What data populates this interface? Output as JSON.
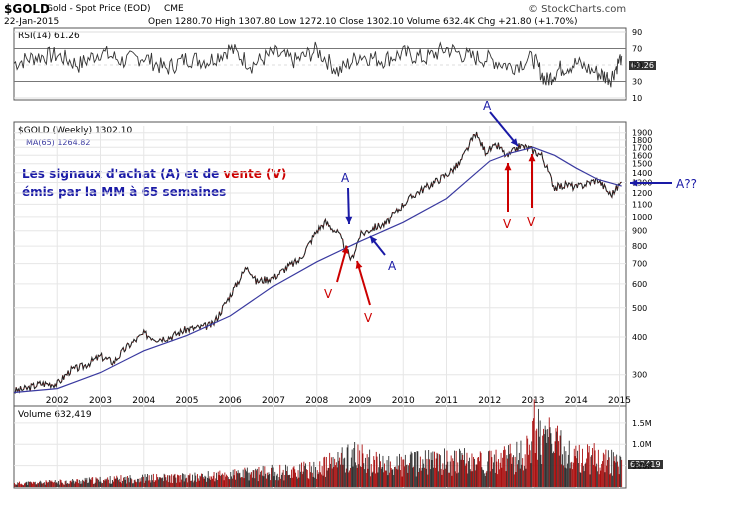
{
  "header": {
    "symbol": "$GOLD",
    "name": "Gold - Spot Price (EOD)",
    "exchange": "CME",
    "watermark": "© StockCharts.com",
    "date": "22-Jan-2015",
    "ohlc": "Open 1280.70  High 1307.80  Low 1272.10  Close 1302.10  Volume 632.4K  Chg +21.80 (+1.70%)"
  },
  "rsi_panel": {
    "label": "RSI(14) 61.26",
    "value_badge": "61.26",
    "ticks": [
      10,
      30,
      50,
      70,
      90
    ],
    "color": "#333333"
  },
  "price_panel": {
    "label": "$GOLD (Weekly) 1302.10",
    "ma_label": "MA(65) 1264.82",
    "annotation_line1": "Les signaux d'achat (A) et de",
    "annotation_word_sell": "vente (V)",
    "annotation_line2": "émis par la MM à 65 semaines",
    "sell_color": "#cc0000",
    "buy_color": "#1a1aa6",
    "price_color": "#000000",
    "ma_color": "#3a3aa0"
  },
  "volume_panel": {
    "label": "Volume 632,419",
    "badge": "632419",
    "color": "#aa1111"
  },
  "chart_data": [
    {
      "type": "line",
      "name": "RSI(14)",
      "x": [
        2001.0,
        2001.5,
        2002.0,
        2002.5,
        2003.0,
        2003.5,
        2004.0,
        2004.5,
        2005.0,
        2005.5,
        2006.0,
        2006.5,
        2007.0,
        2007.5,
        2008.0,
        2008.5,
        2009.0,
        2009.5,
        2010.0,
        2010.5,
        2011.0,
        2011.5,
        2012.0,
        2012.5,
        2013.0,
        2013.3,
        2013.6,
        2014.0,
        2014.5,
        2014.8,
        2015.05
      ],
      "values": [
        52,
        60,
        62,
        50,
        66,
        55,
        60,
        45,
        58,
        55,
        70,
        50,
        64,
        55,
        68,
        42,
        62,
        56,
        64,
        58,
        70,
        60,
        57,
        48,
        58,
        30,
        45,
        52,
        40,
        34,
        61
      ],
      "ylim": [
        10,
        90
      ],
      "tick_labels": [
        "10",
        "30",
        "50",
        "70",
        "90"
      ]
    },
    {
      "type": "line",
      "title": "$GOLD (Weekly) 1302.10",
      "series": [
        {
          "name": "$GOLD",
          "x": [
            2001.0,
            2001.3,
            2001.6,
            2002.0,
            2002.3,
            2002.6,
            2003.0,
            2003.3,
            2003.6,
            2004.0,
            2004.3,
            2004.6,
            2005.0,
            2005.3,
            2005.6,
            2006.0,
            2006.4,
            2006.6,
            2007.0,
            2007.3,
            2007.6,
            2008.0,
            2008.2,
            2008.5,
            2008.8,
            2009.0,
            2009.3,
            2009.6,
            2010.0,
            2010.3,
            2010.6,
            2011.0,
            2011.3,
            2011.67,
            2011.9,
            2012.2,
            2012.4,
            2012.7,
            2012.9,
            2013.2,
            2013.5,
            2013.8,
            2014.0,
            2014.3,
            2014.5,
            2014.8,
            2015.05
          ],
          "values": [
            265,
            270,
            280,
            280,
            310,
            320,
            345,
            330,
            370,
            410,
            395,
            400,
            425,
            430,
            440,
            550,
            690,
            610,
            630,
            680,
            720,
            900,
            960,
            880,
            720,
            870,
            920,
            950,
            1100,
            1200,
            1270,
            1380,
            1500,
            1890,
            1650,
            1720,
            1580,
            1720,
            1690,
            1600,
            1250,
            1280,
            1250,
            1300,
            1330,
            1180,
            1302
          ]
        },
        {
          "name": "MA(65)",
          "x": [
            2001.0,
            2002.0,
            2003.0,
            2004.0,
            2005.0,
            2006.0,
            2007.0,
            2008.0,
            2009.0,
            2010.0,
            2011.0,
            2012.0,
            2012.5,
            2013.0,
            2013.5,
            2014.0,
            2014.5,
            2015.05
          ],
          "values": [
            262,
            270,
            305,
            360,
            405,
            470,
            590,
            710,
            830,
            960,
            1150,
            1530,
            1630,
            1700,
            1600,
            1450,
            1330,
            1265
          ]
        }
      ],
      "xlabel": "",
      "ylabel": "",
      "x_tick_labels": [
        "2002",
        "2003",
        "2004",
        "2005",
        "2006",
        "2007",
        "2008",
        "2009",
        "2010",
        "2011",
        "2012",
        "2013",
        "2014",
        "2015"
      ],
      "y_tick_values": [
        300,
        400,
        500,
        600,
        700,
        800,
        900,
        1000,
        1100,
        1200,
        1300,
        1400,
        1500,
        1600,
        1700,
        1800,
        1900
      ],
      "y_tick_labels": [
        "300",
        "400",
        "500",
        "600",
        "700",
        "800",
        "900",
        "1000",
        "1100",
        "1200",
        "1300",
        "1400",
        "1500",
        "1600",
        "1700",
        "1800",
        "1900"
      ],
      "ylim": [
        240,
        2000
      ],
      "y_scale": "log",
      "annotations": [
        {
          "text": "A",
          "kind": "buy",
          "x": 2008.75,
          "y": 900
        },
        {
          "text": "A",
          "kind": "buy",
          "x": 2009.1,
          "y": 850
        },
        {
          "text": "V",
          "kind": "sell",
          "x": 2008.5,
          "y": 820
        },
        {
          "text": "V",
          "kind": "sell",
          "x": 2008.95,
          "y": 800
        },
        {
          "text": "A",
          "kind": "buy",
          "x": 2012.3,
          "y": 1720
        },
        {
          "text": "V",
          "kind": "sell",
          "x": 2012.45,
          "y": 1560
        },
        {
          "text": "V",
          "kind": "sell",
          "x": 2013.0,
          "y": 1600
        },
        {
          "text": "A??",
          "kind": "buy",
          "x": 2015.05,
          "y": 1302
        }
      ]
    },
    {
      "type": "bar",
      "name": "Volume",
      "x": [
        2001.0,
        2002.0,
        2003.0,
        2004.0,
        2005.0,
        2006.0,
        2007.0,
        2008.0,
        2008.8,
        2009.5,
        2010.0,
        2011.0,
        2012.0,
        2012.8,
        2013.0,
        2013.5,
        2014.0,
        2014.5,
        2015.05
      ],
      "values": [
        100000,
        140000,
        200000,
        250000,
        260000,
        340000,
        420000,
        500000,
        900000,
        600000,
        650000,
        750000,
        700000,
        900000,
        1700000,
        1200000,
        800000,
        850000,
        632419
      ],
      "ylim": [
        0,
        1800000
      ],
      "y_tick_values": [
        500000,
        1000000,
        1500000
      ],
      "y_tick_labels": [
        "500K",
        "1.0M",
        "1.5M"
      ]
    }
  ]
}
